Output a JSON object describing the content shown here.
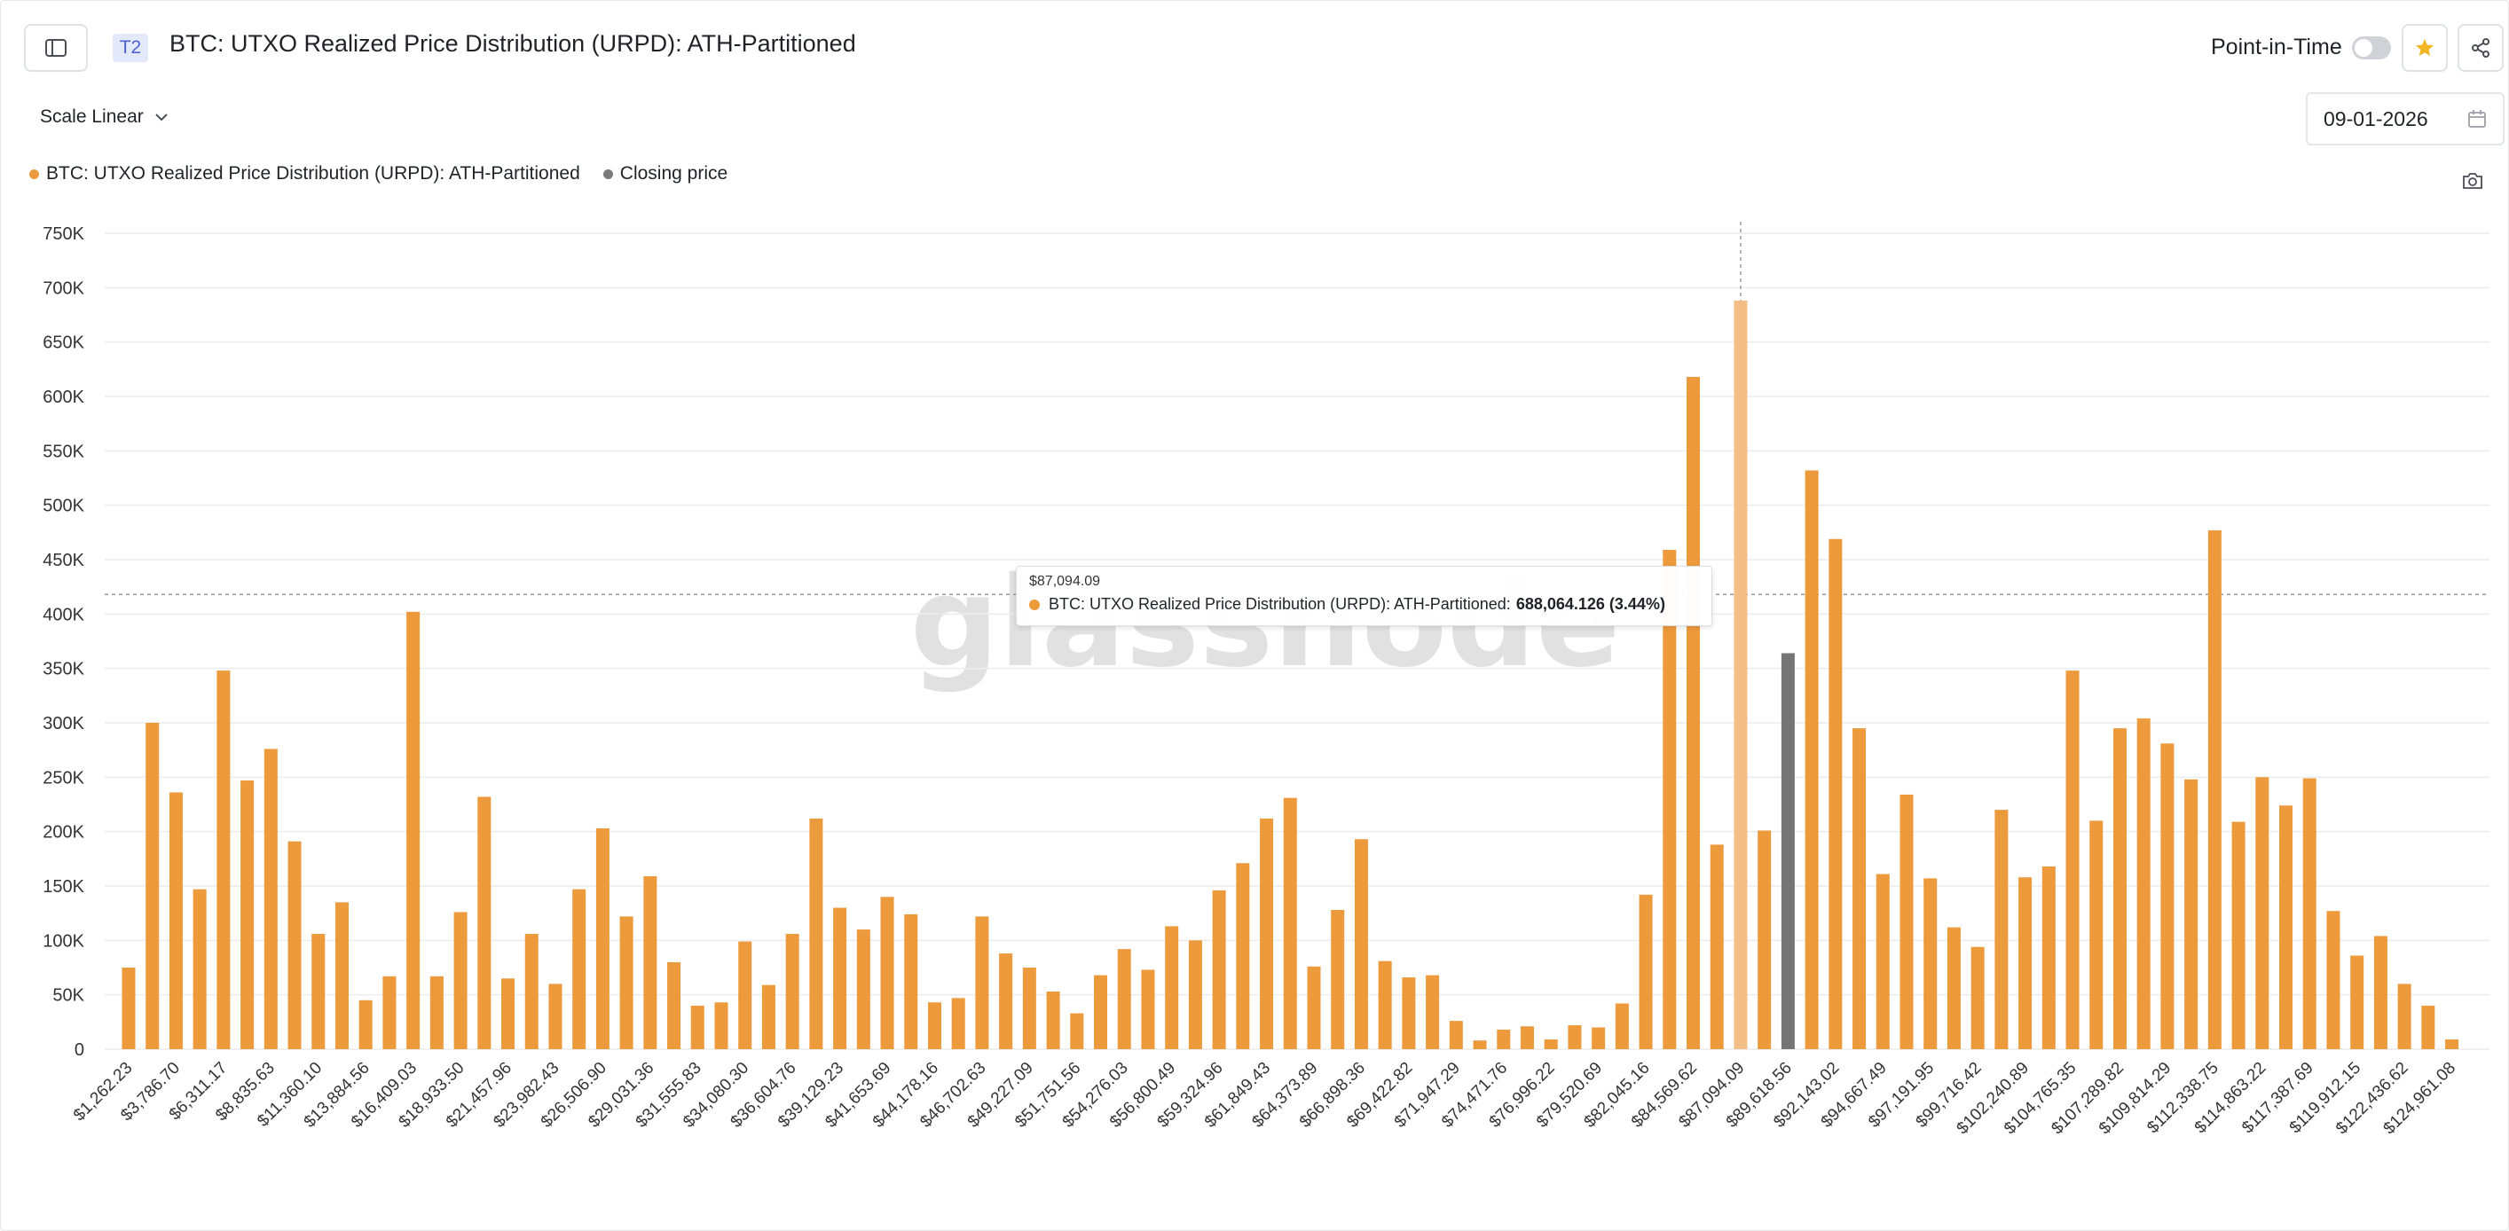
{
  "header": {
    "tier": "T2",
    "title": "BTC: UTXO Realized Price Distribution (URPD): ATH-Partitioned",
    "point_in_time_label": "Point-in-Time",
    "point_in_time_enabled": false
  },
  "controls": {
    "scale_label": "Scale Linear",
    "date_value": "09-01-2026"
  },
  "legend": [
    {
      "label": "BTC: UTXO Realized Price Distribution (URPD): ATH-Partitioned",
      "color": "#ec9a3c"
    },
    {
      "label": "Closing price",
      "color": "#7a7a7a"
    }
  ],
  "watermark": "glassnode",
  "tooltip": {
    "x_label": "$87,094.09",
    "series_label": "BTC: UTXO Realized Price Distribution (URPD): ATH-Partitioned:",
    "value_label": "688,064.126 (3.44%)"
  },
  "colors": {
    "bar": "#ec9a3c",
    "bar_highlight": "#f3bf86",
    "closing_bar": "#757575",
    "grid": "#ececec",
    "accent_star": "#f2b523"
  },
  "chart_data": {
    "type": "bar",
    "ylim": [
      0,
      750000
    ],
    "y_ticks": [
      0,
      50000,
      100000,
      150000,
      200000,
      250000,
      300000,
      350000,
      400000,
      450000,
      500000,
      550000,
      600000,
      650000,
      700000,
      750000
    ],
    "y_tick_labels": [
      "0",
      "50K",
      "100K",
      "150K",
      "200K",
      "250K",
      "300K",
      "350K",
      "400K",
      "450K",
      "500K",
      "550K",
      "600K",
      "650K",
      "700K",
      "750K"
    ],
    "x_tick_labels": [
      "$1,262.23",
      "$3,786.70",
      "$6,311.17",
      "$8,835.63",
      "$11,360.10",
      "$13,884.56",
      "$16,409.03",
      "$18,933.50",
      "$21,457.96",
      "$23,982.43",
      "$26,506.90",
      "$29,031.36",
      "$31,555.83",
      "$34,080.30",
      "$36,604.76",
      "$39,129.23",
      "$41,653.69",
      "$44,178.16",
      "$46,702.63",
      "$49,227.09",
      "$51,751.56",
      "$54,276.03",
      "$56,800.49",
      "$59,324.96",
      "$61,849.43",
      "$64,373.89",
      "$66,898.36",
      "$69,422.82",
      "$71,947.29",
      "$74,471.76",
      "$76,996.22",
      "$79,520.69",
      "$82,045.16",
      "$84,569.62",
      "$87,094.09",
      "$89,618.56",
      "$92,143.02",
      "$94,667.49",
      "$97,191.95",
      "$99,716.42",
      "$102,240.89",
      "$104,765.35",
      "$107,289.82",
      "$109,814.29",
      "$112,338.75",
      "$114,863.22",
      "$117,387.69",
      "$119,912.15",
      "$122,436.62",
      "$124,961.08"
    ],
    "values": [
      75000,
      300000,
      236000,
      147000,
      348000,
      247000,
      276000,
      191000,
      106000,
      135000,
      45000,
      67000,
      402000,
      67000,
      126000,
      232000,
      65000,
      106000,
      60000,
      147000,
      203000,
      122000,
      159000,
      80000,
      40000,
      43000,
      99000,
      59000,
      106000,
      212000,
      130000,
      110000,
      140000,
      124000,
      43000,
      47000,
      122000,
      88000,
      75000,
      53000,
      33000,
      68000,
      92000,
      73000,
      113000,
      100000,
      146000,
      171000,
      212000,
      231000,
      76000,
      128000,
      193000,
      81000,
      66000,
      68000,
      26000,
      8000,
      18000,
      21000,
      9000,
      22000,
      20000,
      42000,
      142000,
      459000,
      618000,
      188000,
      688064,
      201000,
      364000,
      532000,
      469000,
      295000,
      161000,
      234000,
      157000,
      112000,
      94000,
      220000,
      158000,
      168000,
      348000,
      210000,
      295000,
      304000,
      281000,
      248000,
      477000,
      209000,
      250000,
      224000,
      249000,
      127000,
      86000,
      104000,
      60000,
      40000,
      9000
    ],
    "highlight_index": 68,
    "closing_price_index": 70,
    "crosshair_y": 418000
  }
}
